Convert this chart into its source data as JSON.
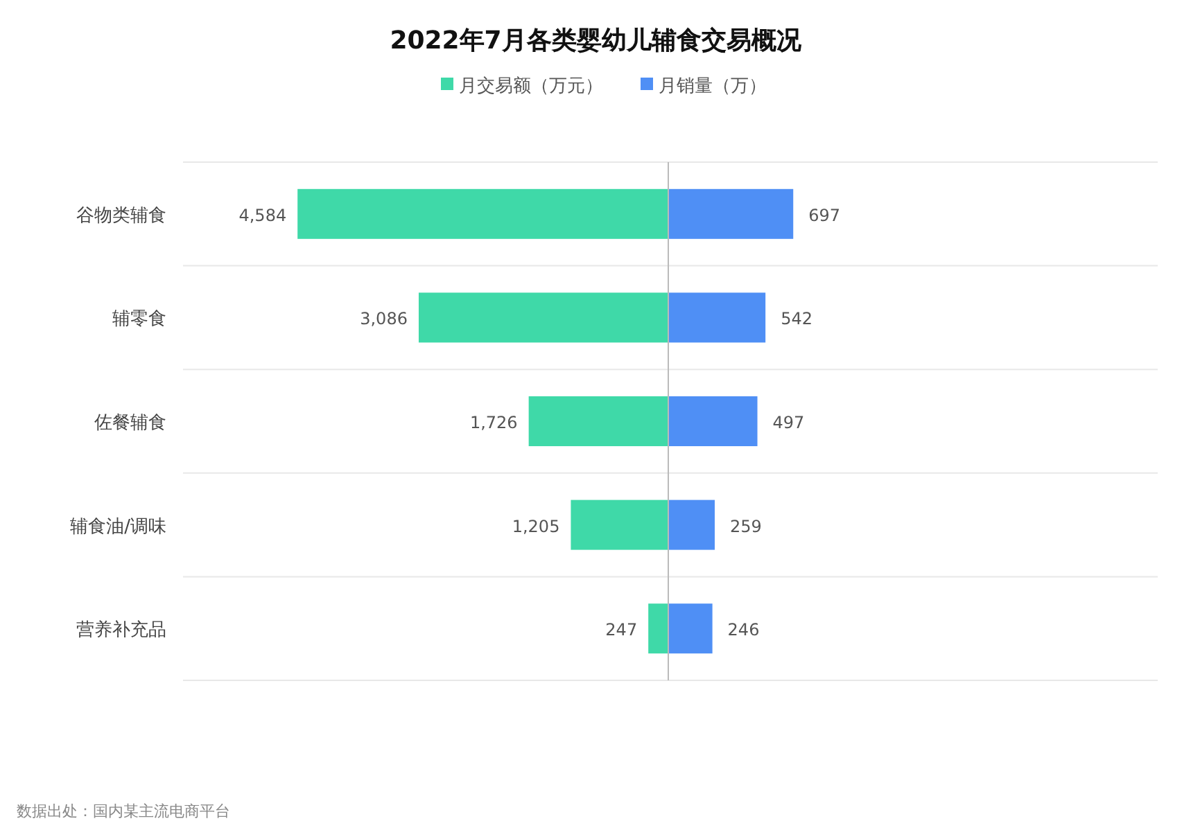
{
  "chart_data": [
    {
      "type": "bar",
      "orientation": "horizontal",
      "title": "2022年7月各类婴幼儿辅食交易概况",
      "categories": [
        "谷物类辅食",
        "辅零食",
        "佐餐辅食",
        "辅食油/调味",
        "营养补充品"
      ],
      "series": [
        {
          "name": "月交易额（万元）",
          "color": "#3fd9a8",
          "values": [
            4584,
            3086,
            1726,
            1205,
            247
          ],
          "value_labels": [
            "4,584",
            "3,086",
            "1,726",
            "1,205",
            "247"
          ]
        }
      ],
      "xlim": [
        6000,
        0
      ],
      "grid": "y",
      "legend": "top",
      "tick_labels": "y",
      "annotations": [
        "数据出处：国内某主流电商平台"
      ]
    },
    {
      "type": "bar",
      "orientation": "horizontal",
      "categories": [
        null,
        null,
        null,
        null,
        null
      ],
      "series": [
        {
          "name": "月销量（万）",
          "color": "#4f8ff5",
          "values": [
            697,
            542,
            497,
            259,
            246
          ],
          "value_labels": [
            "697",
            "542",
            "497",
            "259",
            "246"
          ]
        }
      ],
      "xlim": [
        0,
        2730
      ],
      "grid": "y",
      "legend": "top",
      "tick_labels": false
    }
  ]
}
